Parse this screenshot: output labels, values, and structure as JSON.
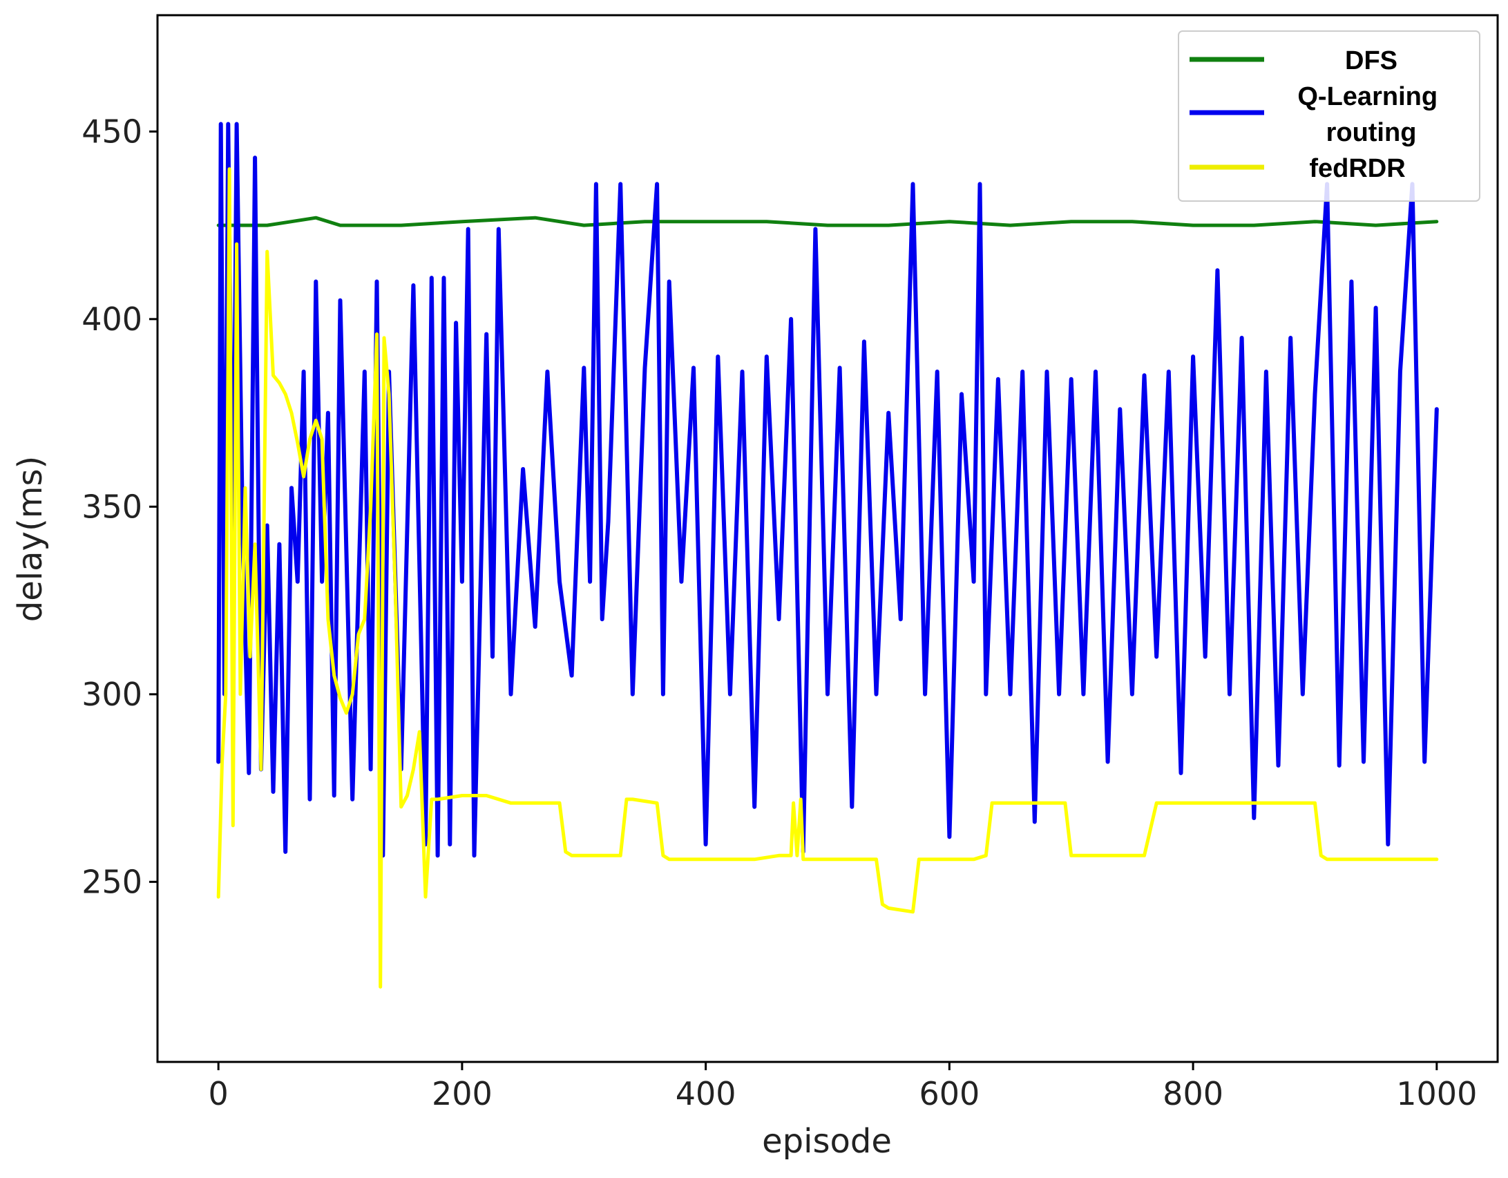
{
  "chart_data": {
    "type": "line",
    "title": "",
    "xlabel": "episode",
    "ylabel": "delay(ms)",
    "xlim": [
      -50,
      1050
    ],
    "ylim": [
      202,
      481
    ],
    "xticks": [
      0,
      200,
      400,
      600,
      800,
      1000
    ],
    "yticks": [
      250,
      300,
      350,
      400,
      450
    ],
    "xtick_labels": [
      "0",
      "200",
      "400",
      "600",
      "800",
      "1000"
    ],
    "ytick_labels": [
      "250",
      "300",
      "350",
      "400",
      "450"
    ],
    "grid": false,
    "legend_position": "top-right",
    "legend": [
      "DFS",
      "Q-Learning routing",
      "fedRDR"
    ],
    "series": [
      {
        "name": "DFS",
        "color": "#108010",
        "x": [
          0,
          10,
          20,
          40,
          60,
          80,
          100,
          150,
          200,
          260,
          300,
          350,
          400,
          450,
          500,
          550,
          600,
          650,
          700,
          750,
          800,
          850,
          900,
          950,
          1000
        ],
        "y": [
          425,
          425,
          425,
          425,
          426,
          427,
          425,
          425,
          426,
          427,
          425,
          426,
          426,
          426,
          425,
          425,
          426,
          425,
          426,
          426,
          425,
          425,
          426,
          425,
          426
        ]
      },
      {
        "name": "Q-Learning routing",
        "color": "#0000ee",
        "x": [
          0,
          2,
          5,
          8,
          12,
          15,
          20,
          25,
          30,
          35,
          40,
          45,
          50,
          55,
          60,
          65,
          70,
          75,
          80,
          85,
          90,
          95,
          100,
          110,
          120,
          125,
          130,
          135,
          140,
          150,
          160,
          170,
          175,
          180,
          185,
          190,
          195,
          200,
          205,
          210,
          220,
          225,
          230,
          240,
          250,
          260,
          270,
          280,
          290,
          300,
          305,
          310,
          315,
          320,
          330,
          340,
          350,
          360,
          365,
          370,
          380,
          390,
          400,
          410,
          420,
          430,
          440,
          450,
          460,
          470,
          480,
          490,
          500,
          510,
          520,
          530,
          540,
          550,
          560,
          570,
          580,
          590,
          600,
          610,
          620,
          625,
          630,
          640,
          650,
          660,
          670,
          680,
          690,
          700,
          710,
          720,
          730,
          740,
          750,
          760,
          770,
          780,
          790,
          800,
          810,
          820,
          830,
          840,
          850,
          860,
          870,
          880,
          890,
          900,
          910,
          920,
          930,
          940,
          950,
          960,
          970,
          980,
          990,
          1000
        ],
        "y": [
          282,
          452,
          300,
          452,
          330,
          452,
          340,
          279,
          443,
          280,
          345,
          274,
          340,
          258,
          355,
          330,
          386,
          272,
          410,
          330,
          375,
          273,
          405,
          272,
          386,
          280,
          410,
          257,
          386,
          280,
          409,
          260,
          411,
          257,
          411,
          260,
          399,
          330,
          424,
          257,
          396,
          310,
          424,
          300,
          360,
          318,
          386,
          330,
          305,
          387,
          330,
          436,
          320,
          346,
          436,
          300,
          387,
          436,
          300,
          410,
          330,
          387,
          260,
          390,
          300,
          386,
          270,
          390,
          320,
          400,
          258,
          424,
          300,
          387,
          270,
          394,
          300,
          375,
          320,
          436,
          300,
          386,
          262,
          380,
          330,
          436,
          300,
          384,
          300,
          386,
          266,
          386,
          300,
          384,
          300,
          386,
          282,
          376,
          300,
          385,
          310,
          386,
          279,
          390,
          310,
          413,
          300,
          395,
          267,
          386,
          281,
          395,
          300,
          380,
          436,
          281,
          410,
          282,
          403,
          260,
          386,
          436,
          282,
          376
        ]
      },
      {
        "name": "fedRDR",
        "color": "#ffff00",
        "x": [
          0,
          3,
          6,
          9,
          12,
          15,
          18,
          22,
          26,
          30,
          35,
          40,
          45,
          50,
          55,
          60,
          65,
          70,
          75,
          80,
          85,
          90,
          95,
          100,
          105,
          110,
          115,
          120,
          125,
          130,
          133,
          136,
          140,
          145,
          150,
          155,
          160,
          165,
          170,
          175,
          180,
          200,
          220,
          240,
          260,
          280,
          285,
          290,
          300,
          320,
          330,
          335,
          340,
          360,
          365,
          370,
          380,
          400,
          420,
          440,
          460,
          470,
          472,
          475,
          478,
          480,
          500,
          520,
          540,
          545,
          550,
          570,
          575,
          580,
          600,
          620,
          630,
          635,
          640,
          660,
          680,
          695,
          700,
          720,
          740,
          760,
          770,
          780,
          800,
          820,
          840,
          860,
          880,
          900,
          905,
          910,
          930,
          950,
          970,
          990,
          1000
        ],
        "y": [
          246,
          282,
          300,
          440,
          265,
          420,
          300,
          355,
          310,
          340,
          280,
          418,
          385,
          383,
          380,
          375,
          367,
          358,
          368,
          373,
          368,
          320,
          305,
          299,
          295,
          300,
          316,
          320,
          350,
          396,
          222,
          395,
          380,
          330,
          270,
          273,
          280,
          290,
          246,
          272,
          272,
          273,
          273,
          271,
          271,
          271,
          258,
          257,
          257,
          257,
          257,
          272,
          272,
          271,
          257,
          256,
          256,
          256,
          256,
          256,
          257,
          257,
          271,
          257,
          272,
          256,
          256,
          256,
          256,
          244,
          243,
          242,
          256,
          256,
          256,
          256,
          257,
          271,
          271,
          271,
          271,
          271,
          257,
          257,
          257,
          257,
          271,
          271,
          271,
          271,
          271,
          271,
          271,
          271,
          257,
          256,
          256,
          256,
          256,
          256,
          256
        ]
      }
    ]
  }
}
